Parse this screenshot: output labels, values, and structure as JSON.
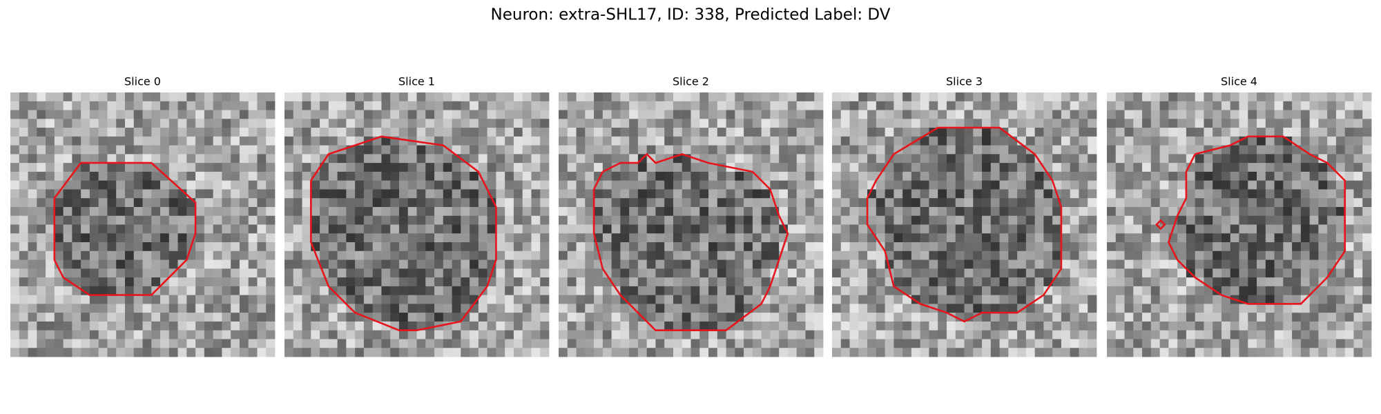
{
  "figure": {
    "title": "Neuron: extra-SHL17, ID: 338, Predicted Label: DV",
    "panels": [
      {
        "title": "Slice 0"
      },
      {
        "title": "Slice 1"
      },
      {
        "title": "Slice 2"
      },
      {
        "title": "Slice 3"
      },
      {
        "title": "Slice 4"
      }
    ]
  }
}
